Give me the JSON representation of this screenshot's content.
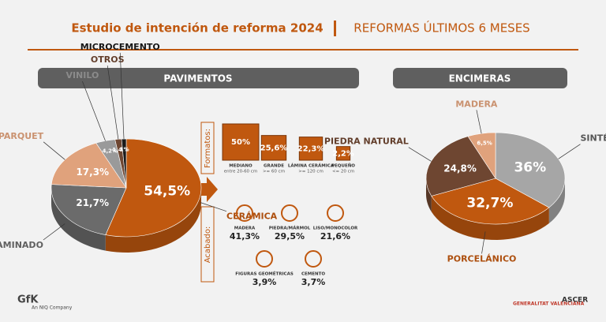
{
  "header": {
    "title": "Estudio de intención de reforma 2024",
    "subtitle": "REFORMAS ÚLTIMOS 6 MESES"
  },
  "chart_data": [
    {
      "type": "pie",
      "title": "PAVIMENTOS",
      "categories": [
        "CERÁMICA",
        "LAMINADO",
        "PARQUET",
        "VINILO",
        "OTROS",
        "MICROCEMENTO"
      ],
      "values": [
        54.5,
        21.7,
        17.3,
        4.2,
        1.4,
        1
      ],
      "value_labels": [
        "54,5%",
        "21,7%",
        "17,3%",
        "4,2%",
        "1,4%",
        "1%"
      ],
      "colors": [
        "#c0580f",
        "#6b6b6b",
        "#e0a27c",
        "#9a9a9a",
        "#6e4631",
        "#1a1a1a"
      ]
    },
    {
      "type": "boxes",
      "title": "Formatos:",
      "categories": [
        "MEDIANO",
        "GRANDE",
        "LÁMINA CERÁMICA",
        "PEQUEÑO"
      ],
      "sublabels": [
        "entre 20-60 cm",
        ">= 60 cm",
        ">= 120 cm",
        "<= 20 cm"
      ],
      "values": [
        50,
        25.6,
        22.3,
        2.2
      ],
      "value_labels": [
        "50%",
        "25,6%",
        "22,3%",
        "2,2%"
      ],
      "color": "#c0580f"
    },
    {
      "type": "icons",
      "title": "Acabado:",
      "categories": [
        "MADERA",
        "PIEDRA/MÁRMOL",
        "LISO/MONOCOLOR",
        "FIGURAS GEOMÉTRICAS",
        "CEMENTO"
      ],
      "values": [
        41.3,
        29.5,
        21.6,
        3.9,
        3.7
      ],
      "value_labels": [
        "41,3%",
        "29,5%",
        "21,6%",
        "3,9%",
        "3,7%"
      ],
      "color": "#c0580f"
    },
    {
      "type": "pie",
      "title": "ENCIMERAS",
      "categories": [
        "SINTÉTICO",
        "PORCELÁNICO",
        "PIEDRA NATURAL",
        "MADERA"
      ],
      "values": [
        36,
        32.7,
        24.8,
        6.5
      ],
      "value_labels": [
        "36%",
        "32,7%",
        "24,8%",
        "6,5%"
      ],
      "colors": [
        "#a6a6a6",
        "#c0580f",
        "#6e4631",
        "#e0a27c"
      ]
    }
  ],
  "footer": {
    "gfk": "GfK",
    "gfk_note": "An NIQ Company",
    "gva": "GENERALITAT VALENCIANA",
    "ascer": "ASCER"
  }
}
